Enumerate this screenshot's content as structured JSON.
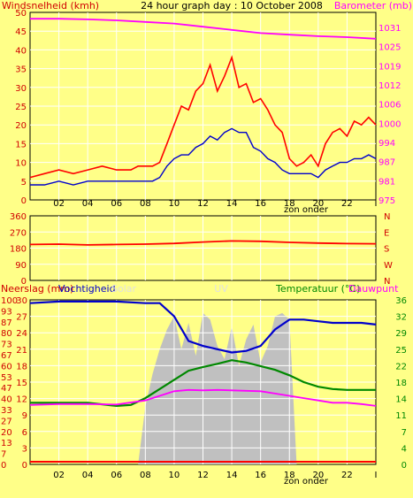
{
  "chart_data": [
    {
      "type": "line",
      "title": "24 hour graph day : 10 October 2008",
      "left_axis_label": "Windsnelheid (kmh)",
      "right_axis_label": "Barometer (mb)",
      "x_ticks": [
        "02",
        "04",
        "06",
        "08",
        "10",
        "12",
        "14",
        "16",
        "18",
        "20",
        "22",
        "I"
      ],
      "sun_label": "zon onder",
      "ylim_left": [
        0,
        50
      ],
      "ylim_right": [
        975,
        1034
      ],
      "y_ticks_left": [
        "0",
        "5",
        "10",
        "15",
        "20",
        "25",
        "30",
        "35",
        "40",
        "45",
        "50"
      ],
      "y_ticks_right": [
        "975",
        "981",
        "987",
        "994",
        "1000",
        "1006",
        "1012",
        "1019",
        "1025",
        "1031"
      ],
      "grid": true,
      "series": [
        {
          "name": "Windsnelheid (kmh)",
          "color": "#FF0000",
          "axis": "left",
          "x": [
            0,
            1,
            2,
            3,
            4,
            5,
            6,
            7,
            7.5,
            8,
            8.5,
            9,
            9.5,
            10,
            10.5,
            11,
            11.5,
            12,
            12.5,
            13,
            13.5,
            14,
            14.5,
            15,
            15.5,
            16,
            16.5,
            17,
            17.5,
            18,
            18.5,
            19,
            19.5,
            20,
            20.5,
            21,
            21.5,
            22,
            22.5,
            23,
            23.5,
            24
          ],
          "values": [
            6,
            7,
            8,
            7,
            8,
            9,
            8,
            8,
            9,
            9,
            9,
            10,
            15,
            20,
            25,
            24,
            29,
            31,
            36,
            29,
            33,
            38,
            30,
            31,
            26,
            27,
            24,
            20,
            18,
            11,
            9,
            10,
            12,
            9,
            15,
            18,
            19,
            17,
            21,
            20,
            22,
            20
          ]
        },
        {
          "name": "Gem. wind",
          "color": "#0000CC",
          "axis": "left",
          "x": [
            0,
            1,
            2,
            3,
            4,
            5,
            6,
            7,
            7.5,
            8,
            8.5,
            9,
            9.5,
            10,
            10.5,
            11,
            11.5,
            12,
            12.5,
            13,
            13.5,
            14,
            14.5,
            15,
            15.5,
            16,
            16.5,
            17,
            17.5,
            18,
            18.5,
            19,
            19.5,
            20,
            20.5,
            21,
            21.5,
            22,
            22.5,
            23,
            23.5,
            24
          ],
          "values": [
            4,
            4,
            5,
            4,
            5,
            5,
            5,
            5,
            5,
            5,
            5,
            6,
            9,
            11,
            12,
            12,
            14,
            15,
            17,
            16,
            18,
            19,
            18,
            18,
            14,
            13,
            11,
            10,
            8,
            7,
            7,
            7,
            7,
            6,
            8,
            9,
            10,
            10,
            11,
            11,
            12,
            11
          ]
        },
        {
          "name": "Barometer (mb)",
          "color": "#FF00FF",
          "axis": "right",
          "x": [
            0,
            2,
            4,
            6,
            8,
            10,
            12,
            14,
            16,
            18,
            20,
            22,
            24
          ],
          "values": [
            1032,
            1032,
            1031.8,
            1031.5,
            1031,
            1030.5,
            1029.5,
            1028.5,
            1027.5,
            1027,
            1026.5,
            1026.2,
            1025.7
          ]
        }
      ]
    },
    {
      "type": "line",
      "ylim": [
        0,
        360
      ],
      "y_ticks": [
        "0",
        "90",
        "180",
        "270",
        "360"
      ],
      "compass_labels": [
        "N",
        "W",
        "S",
        "E",
        "N"
      ],
      "x_ticks": [
        "02",
        "04",
        "06",
        "08",
        "10",
        "12",
        "14",
        "16",
        "18",
        "20",
        "22",
        "I"
      ],
      "grid": true,
      "series": [
        {
          "name": "Windrichting",
          "color": "#FF0000",
          "x": [
            0,
            2,
            4,
            6,
            8,
            10,
            12,
            14,
            16,
            18,
            20,
            22,
            24
          ],
          "values": [
            200,
            202,
            198,
            200,
            202,
            206,
            214,
            220,
            218,
            212,
            208,
            205,
            204
          ]
        }
      ]
    },
    {
      "type": "area",
      "left_axis_label_1": "Neerslag (mm)",
      "left_axis_label_2": "Vochtigheid",
      "left_axis_label_3": "Solar",
      "center_label": "UV",
      "right_axis_label_1": "Temperatuur (°C)",
      "right_axis_label_2": "Dauwpunt",
      "ylim_left": [
        0,
        100
      ],
      "ylim_right": [
        0,
        36
      ],
      "y_ticks_left_pct": [
        "0",
        "7",
        "13",
        "20",
        "27",
        "33",
        "40",
        "47",
        "53",
        "60",
        "67",
        "73",
        "80",
        "87",
        "93",
        "100"
      ],
      "y_ticks_left_mm": [
        "0",
        "3",
        "6",
        "9",
        "12",
        "15",
        "18",
        "21",
        "24",
        "27",
        "30"
      ],
      "y_ticks_right": [
        "0",
        "4",
        "7",
        "11",
        "14",
        "18",
        "22",
        "25",
        "29",
        "32",
        "36"
      ],
      "x_ticks": [
        "02",
        "04",
        "06",
        "08",
        "10",
        "12",
        "14",
        "16",
        "18",
        "20",
        "22",
        "I"
      ],
      "sun_label": "zon onder",
      "grid": true,
      "series": [
        {
          "name": "Solar",
          "color": "#C0C0C0",
          "axis": "left",
          "x": [
            7.5,
            8,
            8.5,
            9,
            9.5,
            10,
            10.5,
            11,
            11.5,
            12,
            12.5,
            13,
            13.5,
            14,
            14.5,
            15,
            15.5,
            16,
            16.5,
            17,
            17.5,
            18,
            18.5
          ],
          "values": [
            0,
            35,
            55,
            70,
            82,
            90,
            70,
            86,
            66,
            92,
            88,
            72,
            64,
            84,
            60,
            76,
            85,
            62,
            72,
            90,
            92,
            88,
            0
          ]
        },
        {
          "name": "Vochtigheid",
          "color": "#0000CC",
          "axis": "left",
          "x": [
            0,
            2,
            4,
            6,
            8,
            9,
            10,
            11,
            12,
            13,
            14,
            15,
            16,
            17,
            18,
            19,
            20,
            21,
            22,
            23,
            24
          ],
          "values": [
            98,
            99,
            99,
            99,
            98,
            98,
            90,
            75,
            72,
            70,
            68,
            69,
            72,
            82,
            88,
            88,
            87,
            86,
            86,
            86,
            85
          ]
        },
        {
          "name": "Temperatuur (°C)",
          "color": "#008800",
          "axis": "right",
          "x": [
            0,
            2,
            4,
            6,
            7,
            8,
            9,
            10,
            11,
            12,
            13,
            14,
            15,
            16,
            17,
            18,
            19,
            20,
            21,
            22,
            23,
            24
          ],
          "values": [
            13.5,
            13.5,
            13.5,
            12.8,
            13,
            14.5,
            16.5,
            18.5,
            20.5,
            21.3,
            22,
            22.8,
            22.3,
            21.5,
            20.7,
            19.5,
            18,
            17,
            16.5,
            16.3,
            16.3,
            16.3
          ]
        },
        {
          "name": "Dauwpunt",
          "color": "#FF00FF",
          "axis": "right",
          "x": [
            0,
            2,
            4,
            6,
            8,
            9,
            10,
            11,
            12,
            13,
            14,
            15,
            16,
            17,
            18,
            19,
            20,
            21,
            22,
            23,
            24
          ],
          "values": [
            13,
            13.2,
            13.2,
            13.1,
            14,
            15,
            16,
            16.3,
            16.2,
            16.3,
            16.2,
            16.1,
            16,
            15.5,
            15,
            14.5,
            14,
            13.5,
            13.5,
            13.2,
            12.8
          ]
        },
        {
          "name": "Neerslag (mm)",
          "color": "#FF0000",
          "axis": "left",
          "x": [
            0,
            24
          ],
          "values": [
            0,
            0
          ]
        }
      ]
    }
  ]
}
